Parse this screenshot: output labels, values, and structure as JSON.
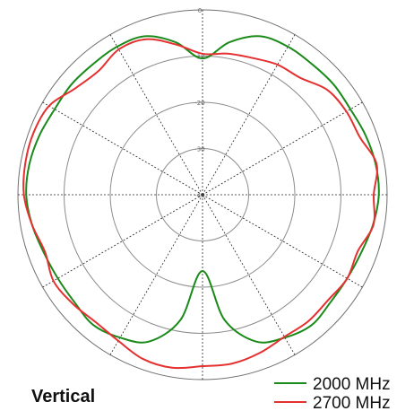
{
  "caption": "Vertical",
  "chart_data": {
    "type": "polar",
    "r_ticks": [
      0,
      -10,
      -20,
      -30,
      -40
    ],
    "r_min": -40,
    "r_max": 0,
    "angular_gridlines_deg": [
      0,
      30,
      60,
      90,
      120,
      150,
      180,
      210,
      240,
      270,
      300,
      330
    ],
    "angle_unit": "degrees clockwise from top",
    "series": [
      {
        "name": "2000 MHz",
        "color": "#1a8a1a",
        "points": [
          [
            0,
            -10.5
          ],
          [
            10,
            -6.5
          ],
          [
            20,
            -3.5
          ],
          [
            30,
            -3.0
          ],
          [
            40,
            -3.1
          ],
          [
            50,
            -2.9
          ],
          [
            60,
            -3.0
          ],
          [
            70,
            -2.4
          ],
          [
            80,
            -1.9
          ],
          [
            90,
            -1.8
          ],
          [
            100,
            -2.5
          ],
          [
            110,
            -3.4
          ],
          [
            120,
            -3.8
          ],
          [
            130,
            -3.8
          ],
          [
            140,
            -3.2
          ],
          [
            150,
            -4.3
          ],
          [
            160,
            -6.2
          ],
          [
            170,
            -12.5
          ],
          [
            180,
            -23.5
          ],
          [
            190,
            -12.5
          ],
          [
            200,
            -6.2
          ],
          [
            210,
            -4.3
          ],
          [
            220,
            -3.2
          ],
          [
            230,
            -3.8
          ],
          [
            240,
            -3.8
          ],
          [
            250,
            -3.4
          ],
          [
            260,
            -2.5
          ],
          [
            270,
            -1.8
          ],
          [
            280,
            -1.9
          ],
          [
            290,
            -2.4
          ],
          [
            300,
            -3.0
          ],
          [
            310,
            -2.9
          ],
          [
            320,
            -3.1
          ],
          [
            330,
            -3.0
          ],
          [
            340,
            -3.5
          ],
          [
            350,
            -6.5
          ]
        ]
      },
      {
        "name": "2700 MHz",
        "color": "#e53030",
        "points": [
          [
            0,
            -9.5
          ],
          [
            10,
            -9.0
          ],
          [
            20,
            -8.5
          ],
          [
            30,
            -7.5
          ],
          [
            40,
            -7.0
          ],
          [
            50,
            -4.7
          ],
          [
            60,
            -4.0
          ],
          [
            70,
            -3.7
          ],
          [
            80,
            -1.7
          ],
          [
            90,
            -2.9
          ],
          [
            100,
            -2.4
          ],
          [
            110,
            -4.2
          ],
          [
            120,
            -3.8
          ],
          [
            130,
            -4.5
          ],
          [
            140,
            -4.3
          ],
          [
            150,
            -4.5
          ],
          [
            160,
            -3.6
          ],
          [
            170,
            -2.9
          ],
          [
            180,
            -2.9
          ],
          [
            190,
            -2.0
          ],
          [
            200,
            -2.2
          ],
          [
            210,
            -3.5
          ],
          [
            220,
            -4.0
          ],
          [
            230,
            -3.3
          ],
          [
            240,
            -2.7
          ],
          [
            250,
            -3.7
          ],
          [
            260,
            -2.5
          ],
          [
            270,
            -1.3
          ],
          [
            280,
            -1.0
          ],
          [
            290,
            -1.0
          ],
          [
            300,
            -1.6
          ],
          [
            310,
            -4.1
          ],
          [
            320,
            -5.0
          ],
          [
            330,
            -3.7
          ],
          [
            340,
            -4.2
          ],
          [
            350,
            -7.0
          ]
        ]
      }
    ],
    "legend": {
      "position": "bottom-right",
      "entries": [
        {
          "label": "2000 MHz",
          "color": "#1a8a1a"
        },
        {
          "label": "2700 MHz",
          "color": "#e53030"
        }
      ]
    }
  }
}
